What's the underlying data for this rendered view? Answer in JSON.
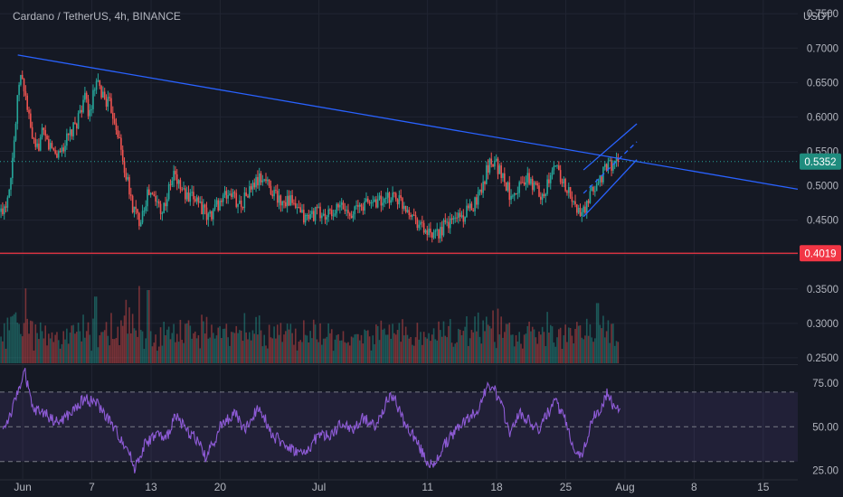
{
  "header": {
    "symbol_label": "Cardano / TetherUS, 4h, BINANCE"
  },
  "colors": {
    "background": "#151924",
    "grid": "#212532",
    "up": "#26a69a",
    "down": "#ef5350",
    "trendline": "#2962ff",
    "support": "#f23645",
    "price_badge": "#1f8c7e",
    "rsi_line": "#8e5bd6",
    "rsi_band": "#7e57c2",
    "text": "#b2b5be"
  },
  "chart_data": {
    "type": "candlestick",
    "title": "Cardano / TetherUS, 4h, BINANCE",
    "price_unit": "USDT",
    "price_ticks": [
      "0.7500",
      "0.7000",
      "0.6500",
      "0.6000",
      "0.5500",
      "0.5000",
      "0.4500",
      "0.4000",
      "0.3500",
      "0.3000",
      "0.2500"
    ],
    "price_range": [
      0.242,
      0.77
    ],
    "time_labels": [
      {
        "label": "Jun",
        "day": 0
      },
      {
        "label": "7",
        "day": 7
      },
      {
        "label": "13",
        "day": 13
      },
      {
        "label": "20",
        "day": 20
      },
      {
        "label": "Jul",
        "day": 30
      },
      {
        "label": "11",
        "day": 41
      },
      {
        "label": "18",
        "day": 48
      },
      {
        "label": "25",
        "day": 55
      },
      {
        "label": "Aug",
        "day": 61
      },
      {
        "label": "8",
        "day": 68
      },
      {
        "label": "15",
        "day": 75
      }
    ],
    "time_range_days": [
      -2.3,
      78.5
    ],
    "price_path": [
      {
        "day": -2.2,
        "close": 0.462
      },
      {
        "day": -1.6,
        "close": 0.48
      },
      {
        "day": -1.2,
        "close": 0.52
      },
      {
        "day": -0.8,
        "close": 0.575
      },
      {
        "day": -0.3,
        "close": 0.662
      },
      {
        "day": 0.2,
        "close": 0.64
      },
      {
        "day": 0.8,
        "close": 0.58
      },
      {
        "day": 1.3,
        "close": 0.548
      },
      {
        "day": 2.0,
        "close": 0.575
      },
      {
        "day": 2.7,
        "close": 0.558
      },
      {
        "day": 3.5,
        "close": 0.545
      },
      {
        "day": 4.3,
        "close": 0.562
      },
      {
        "day": 5.3,
        "close": 0.585
      },
      {
        "day": 6.2,
        "close": 0.628
      },
      {
        "day": 6.8,
        "close": 0.605
      },
      {
        "day": 7.4,
        "close": 0.648
      },
      {
        "day": 8.2,
        "close": 0.63
      },
      {
        "day": 9.0,
        "close": 0.612
      },
      {
        "day": 9.6,
        "close": 0.582
      },
      {
        "day": 10.1,
        "close": 0.538
      },
      {
        "day": 10.5,
        "close": 0.512
      },
      {
        "day": 11.1,
        "close": 0.47
      },
      {
        "day": 11.8,
        "close": 0.45
      },
      {
        "day": 12.7,
        "close": 0.49
      },
      {
        "day": 13.4,
        "close": 0.48
      },
      {
        "day": 14.2,
        "close": 0.465
      },
      {
        "day": 14.9,
        "close": 0.498
      },
      {
        "day": 15.3,
        "close": 0.518
      },
      {
        "day": 15.9,
        "close": 0.5
      },
      {
        "day": 16.8,
        "close": 0.478
      },
      {
        "day": 17.6,
        "close": 0.485
      },
      {
        "day": 18.7,
        "close": 0.452
      },
      {
        "day": 19.8,
        "close": 0.475
      },
      {
        "day": 21.0,
        "close": 0.49
      },
      {
        "day": 22.0,
        "close": 0.472
      },
      {
        "day": 22.6,
        "close": 0.485
      },
      {
        "day": 23.6,
        "close": 0.505
      },
      {
        "day": 24.4,
        "close": 0.512
      },
      {
        "day": 25.2,
        "close": 0.495
      },
      {
        "day": 26.1,
        "close": 0.478
      },
      {
        "day": 26.9,
        "close": 0.482
      },
      {
        "day": 27.7,
        "close": 0.465
      },
      {
        "day": 28.6,
        "close": 0.452
      },
      {
        "day": 29.8,
        "close": 0.462
      },
      {
        "day": 30.6,
        "close": 0.455
      },
      {
        "day": 31.4,
        "close": 0.46
      },
      {
        "day": 32.3,
        "close": 0.47
      },
      {
        "day": 32.9,
        "close": 0.462
      },
      {
        "day": 33.8,
        "close": 0.466
      },
      {
        "day": 34.8,
        "close": 0.475
      },
      {
        "day": 36.0,
        "close": 0.48
      },
      {
        "day": 36.6,
        "close": 0.474
      },
      {
        "day": 37.5,
        "close": 0.488
      },
      {
        "day": 38.4,
        "close": 0.475
      },
      {
        "day": 39.2,
        "close": 0.465
      },
      {
        "day": 40.2,
        "close": 0.445
      },
      {
        "day": 40.9,
        "close": 0.432
      },
      {
        "day": 41.6,
        "close": 0.422
      },
      {
        "day": 42.4,
        "close": 0.438
      },
      {
        "day": 43.3,
        "close": 0.446
      },
      {
        "day": 44.0,
        "close": 0.458
      },
      {
        "day": 44.6,
        "close": 0.455
      },
      {
        "day": 45.3,
        "close": 0.465
      },
      {
        "day": 46.1,
        "close": 0.485
      },
      {
        "day": 46.7,
        "close": 0.508
      },
      {
        "day": 47.2,
        "close": 0.532
      },
      {
        "day": 47.7,
        "close": 0.54
      },
      {
        "day": 48.4,
        "close": 0.52
      },
      {
        "day": 49.3,
        "close": 0.49
      },
      {
        "day": 50.2,
        "close": 0.498
      },
      {
        "day": 51.0,
        "close": 0.51
      },
      {
        "day": 51.7,
        "close": 0.5
      },
      {
        "day": 52.6,
        "close": 0.488
      },
      {
        "day": 53.3,
        "close": 0.505
      },
      {
        "day": 54.0,
        "close": 0.532
      },
      {
        "day": 54.6,
        "close": 0.51
      },
      {
        "day": 55.2,
        "close": 0.492
      },
      {
        "day": 55.9,
        "close": 0.47
      },
      {
        "day": 56.5,
        "close": 0.458
      },
      {
        "day": 57.1,
        "close": 0.468
      },
      {
        "day": 57.7,
        "close": 0.49
      },
      {
        "day": 58.3,
        "close": 0.508
      },
      {
        "day": 58.9,
        "close": 0.52
      },
      {
        "day": 59.4,
        "close": 0.532
      },
      {
        "day": 59.9,
        "close": 0.53
      },
      {
        "day": 60.3,
        "close": 0.535
      }
    ],
    "volume": {
      "panel_range": [
        0,
        1
      ],
      "spikes": [
        {
          "day": 0.3,
          "v": 0.92
        },
        {
          "day": 7.4,
          "v": 0.82
        },
        {
          "day": 10.5,
          "v": 0.78
        },
        {
          "day": 11.8,
          "v": 0.95
        },
        {
          "day": 12.7,
          "v": 0.9
        },
        {
          "day": 47.6,
          "v": 0.65
        },
        {
          "day": 58.2,
          "v": 0.74
        }
      ]
    },
    "rsi": {
      "ticks": [
        "75.00",
        "50.00",
        "25.00"
      ],
      "range": [
        20,
        85
      ],
      "band": [
        30,
        70
      ],
      "mid": 50,
      "path": [
        {
          "day": -2.0,
          "v": 48
        },
        {
          "day": -1.0,
          "v": 60
        },
        {
          "day": -0.3,
          "v": 74
        },
        {
          "day": 0.2,
          "v": 82
        },
        {
          "day": 1.0,
          "v": 60
        },
        {
          "day": 2.2,
          "v": 58
        },
        {
          "day": 3.5,
          "v": 52
        },
        {
          "day": 5.0,
          "v": 58
        },
        {
          "day": 6.2,
          "v": 66
        },
        {
          "day": 7.4,
          "v": 64
        },
        {
          "day": 8.6,
          "v": 55
        },
        {
          "day": 9.8,
          "v": 44
        },
        {
          "day": 10.6,
          "v": 38
        },
        {
          "day": 11.3,
          "v": 26
        },
        {
          "day": 12.4,
          "v": 40
        },
        {
          "day": 13.6,
          "v": 46
        },
        {
          "day": 14.5,
          "v": 42
        },
        {
          "day": 15.5,
          "v": 58
        },
        {
          "day": 16.5,
          "v": 48
        },
        {
          "day": 17.5,
          "v": 44
        },
        {
          "day": 18.6,
          "v": 32
        },
        {
          "day": 20.0,
          "v": 50
        },
        {
          "day": 21.5,
          "v": 58
        },
        {
          "day": 22.5,
          "v": 48
        },
        {
          "day": 24.0,
          "v": 62
        },
        {
          "day": 25.3,
          "v": 45
        },
        {
          "day": 26.5,
          "v": 40
        },
        {
          "day": 27.6,
          "v": 36
        },
        {
          "day": 28.6,
          "v": 34
        },
        {
          "day": 30.0,
          "v": 46
        },
        {
          "day": 31.0,
          "v": 44
        },
        {
          "day": 32.4,
          "v": 52
        },
        {
          "day": 33.4,
          "v": 48
        },
        {
          "day": 34.5,
          "v": 55
        },
        {
          "day": 35.8,
          "v": 50
        },
        {
          "day": 36.8,
          "v": 64
        },
        {
          "day": 37.6,
          "v": 68
        },
        {
          "day": 38.6,
          "v": 52
        },
        {
          "day": 39.5,
          "v": 46
        },
        {
          "day": 40.4,
          "v": 36
        },
        {
          "day": 41.0,
          "v": 30
        },
        {
          "day": 41.6,
          "v": 26
        },
        {
          "day": 42.5,
          "v": 38
        },
        {
          "day": 43.5,
          "v": 45
        },
        {
          "day": 44.4,
          "v": 52
        },
        {
          "day": 45.4,
          "v": 56
        },
        {
          "day": 46.3,
          "v": 62
        },
        {
          "day": 47.0,
          "v": 72
        },
        {
          "day": 47.6,
          "v": 74
        },
        {
          "day": 48.5,
          "v": 62
        },
        {
          "day": 49.4,
          "v": 46
        },
        {
          "day": 50.2,
          "v": 58
        },
        {
          "day": 51.2,
          "v": 54
        },
        {
          "day": 52.2,
          "v": 48
        },
        {
          "day": 53.2,
          "v": 58
        },
        {
          "day": 54.0,
          "v": 64
        },
        {
          "day": 54.8,
          "v": 56
        },
        {
          "day": 55.6,
          "v": 42
        },
        {
          "day": 56.4,
          "v": 32
        },
        {
          "day": 57.0,
          "v": 40
        },
        {
          "day": 57.8,
          "v": 56
        },
        {
          "day": 58.6,
          "v": 60
        },
        {
          "day": 59.2,
          "v": 70
        },
        {
          "day": 59.8,
          "v": 62
        },
        {
          "day": 60.5,
          "v": 62
        }
      ]
    },
    "drawings": {
      "trendline": {
        "from": {
          "day": -0.5,
          "price": 0.69
        },
        "to": {
          "day": 78.5,
          "price": 0.495
        }
      },
      "channel_upper": {
        "from": {
          "day": 56.8,
          "price": 0.523
        },
        "to": {
          "day": 62.2,
          "price": 0.59
        }
      },
      "channel_lower": {
        "from": {
          "day": 56.8,
          "price": 0.455
        },
        "to": {
          "day": 62.2,
          "price": 0.538
        }
      },
      "channel_mid": {
        "from": {
          "day": 56.8,
          "price": 0.489
        },
        "to": {
          "day": 62.2,
          "price": 0.564
        }
      },
      "support_price": 0.4019,
      "current_price": 0.5352
    },
    "price_badges": [
      {
        "label": "0.5352",
        "price": 0.5352,
        "kind": "last"
      },
      {
        "label": "0.4019",
        "price": 0.4019,
        "kind": "support"
      }
    ]
  }
}
